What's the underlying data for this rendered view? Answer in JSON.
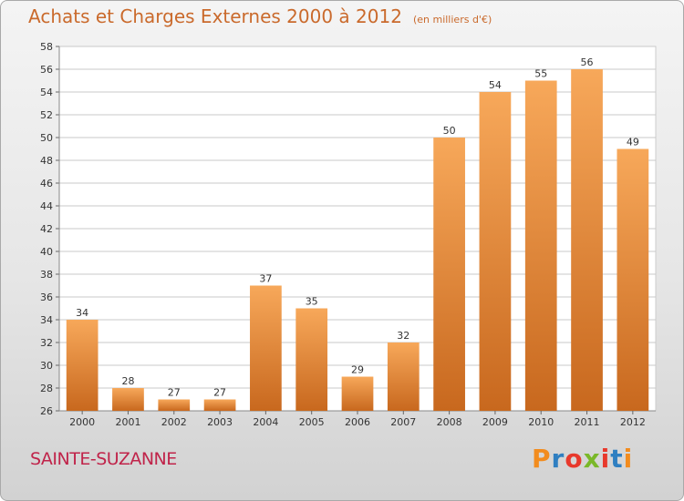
{
  "header": {
    "title": "Achats et Charges Externes 2000 à 2012",
    "unit": "(en milliers d'€)"
  },
  "footer": {
    "commune": "SAINTE-SUZANNE",
    "brand": "Proxiti"
  },
  "colors": {
    "title": "#ca6a2c",
    "commune": "#c0244a",
    "bar_top": "#f7a85a",
    "bar_bottom": "#c8681e",
    "grid": "#c8c8c8"
  },
  "chart_data": {
    "type": "bar",
    "title": "Achats et Charges Externes 2000 à 2012",
    "subtitle": "(en milliers d'€)",
    "xlabel": "",
    "ylabel": "",
    "categories": [
      "2000",
      "2001",
      "2002",
      "2003",
      "2004",
      "2005",
      "2006",
      "2007",
      "2008",
      "2009",
      "2010",
      "2011",
      "2012"
    ],
    "values": [
      34,
      28,
      27,
      27,
      37,
      35,
      29,
      32,
      50,
      54,
      55,
      56,
      49
    ],
    "ylim": [
      26,
      58
    ],
    "yticks": [
      26,
      28,
      30,
      32,
      34,
      36,
      38,
      40,
      42,
      44,
      46,
      48,
      50,
      52,
      54,
      56,
      58
    ],
    "grid": true,
    "legend": "none"
  }
}
